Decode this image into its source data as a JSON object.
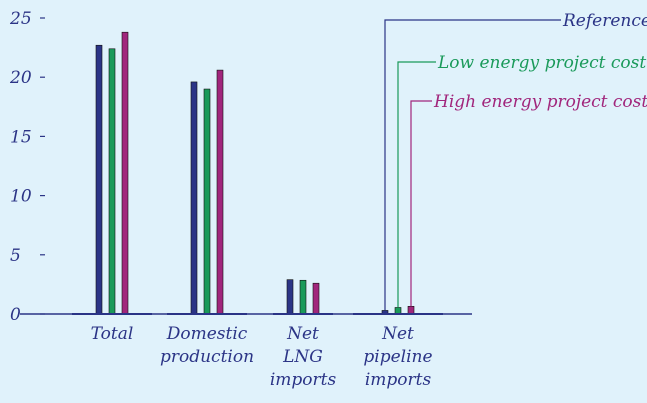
{
  "chart_data": {
    "type": "bar",
    "title": "",
    "xlabel": "",
    "ylabel": "",
    "ylim": [
      0,
      25
    ],
    "yticks": [
      "0",
      "5",
      "10",
      "15",
      "20",
      "25"
    ],
    "grid": false,
    "legend_placement": "top-right, leader lines to bars",
    "categories": [
      [
        "Total"
      ],
      [
        "Domestic",
        "production"
      ],
      [
        "Net",
        "LNG",
        "imports"
      ],
      [
        "Net",
        "pipeline",
        "imports"
      ]
    ],
    "series": [
      {
        "name": "Reference",
        "color": "#2b3486",
        "values": [
          22.7,
          19.6,
          2.9,
          0.3
        ]
      },
      {
        "name": "Low energy project  cost",
        "color": "#1a9a5a",
        "values": [
          22.4,
          19.0,
          2.85,
          0.55
        ]
      },
      {
        "name": "High energy project cost",
        "color": "#a1267c",
        "values": [
          23.8,
          20.6,
          2.6,
          0.65
        ]
      }
    ],
    "colors": {
      "background": "#e0f2fb",
      "axis": "#2b3486"
    }
  }
}
